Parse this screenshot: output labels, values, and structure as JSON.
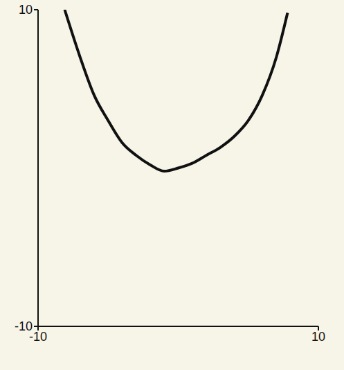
{
  "chart_data": {
    "type": "line",
    "x": [
      -8.1,
      -7,
      -6,
      -5,
      -4,
      -3,
      -2,
      -1,
      0,
      1,
      2,
      3,
      4,
      5,
      6,
      7,
      7.8
    ],
    "values": [
      10,
      7,
      4.6,
      3,
      1.6,
      0.8,
      0.2,
      -0.2,
      0,
      0.3,
      0.8,
      1.3,
      2,
      3,
      4.6,
      7,
      9.8
    ],
    "color": "#111111",
    "xlim": [
      -10,
      10
    ],
    "xticks": [
      -10,
      10
    ],
    "ylim": [
      -10,
      10
    ],
    "yticks": [
      -10,
      10
    ],
    "grid": false
  }
}
